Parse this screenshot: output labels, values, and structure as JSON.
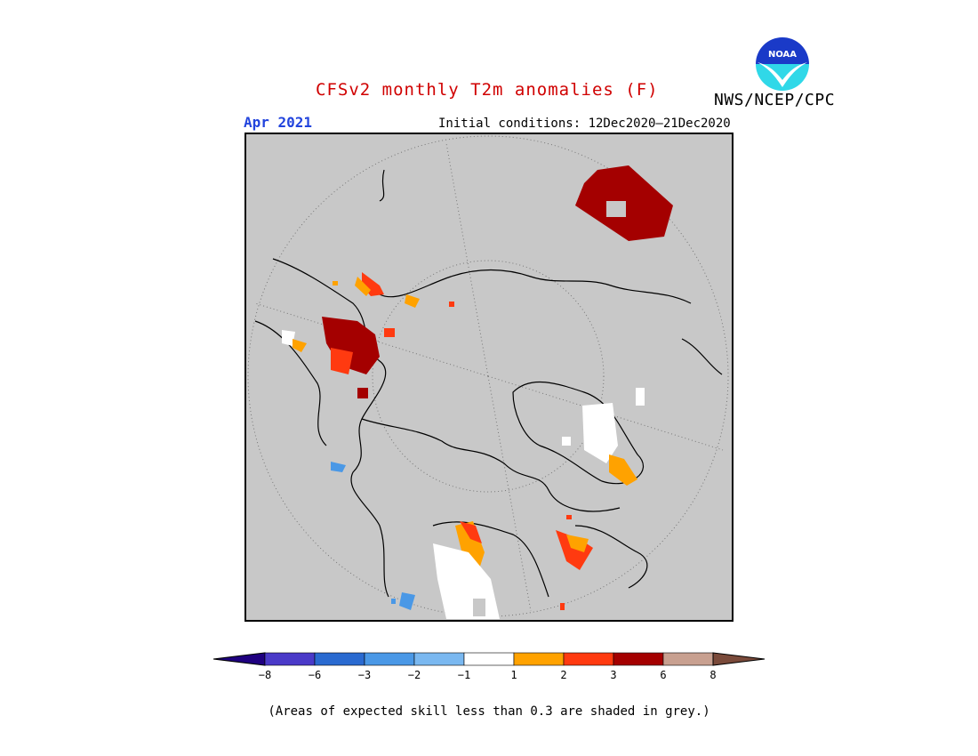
{
  "title": "CFSv2 monthly T2m anomalies (F)",
  "org": "NWS/NCEP/CPC",
  "logo_text": "NOAA",
  "month": "Apr 2021",
  "initial_conditions": "Initial conditions: 12Dec2020–21Dec2020",
  "colorbar": {
    "colors": [
      "#1f0080",
      "#4a3ac8",
      "#2a6ad0",
      "#4a98e6",
      "#7ab8f0",
      "#ffffff",
      "#ffa200",
      "#ff3a10",
      "#a40000",
      "#c8a090",
      "#7a4a3a"
    ],
    "tick_labels": [
      "−8",
      "−6",
      "−3",
      "−2",
      "−1",
      "1",
      "2",
      "3",
      "6",
      "8"
    ]
  },
  "note": "(Areas of expected skill less than 0.3 are shaded in grey.)",
  "map": {
    "background": "#c8c8c8",
    "no_skill_color": "#c8c8c8"
  }
}
